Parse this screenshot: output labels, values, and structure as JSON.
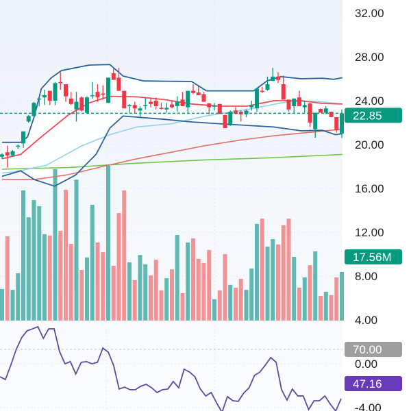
{
  "chart_data": {
    "type": "candlestick",
    "title": "",
    "price_axis": {
      "ticks": [
        32,
        28,
        24,
        20,
        16,
        12,
        8,
        4,
        0,
        -4
      ],
      "tick_labels": [
        "32.00",
        "28.00",
        "24.00",
        "20.00",
        "16.00",
        "12.00",
        "8.00",
        "4.00",
        "0.00",
        "-4.00"
      ],
      "range": [
        -4.4,
        33.2
      ],
      "position": "right"
    },
    "candles_ohlc": [
      [
        18.9,
        19.2,
        18.7,
        19.1
      ],
      [
        19.3,
        19.9,
        17.9,
        19.0
      ],
      [
        19.0,
        19.5,
        18.9,
        19.4
      ],
      [
        19.8,
        20.0,
        19.6,
        19.9
      ],
      [
        20.1,
        21.2,
        19.7,
        21.2
      ],
      [
        22.1,
        22.7,
        22.0,
        22.6
      ],
      [
        22.6,
        23.9,
        22.5,
        23.8
      ],
      [
        24.15,
        24.4,
        23.5,
        24.2
      ],
      [
        24.3,
        25.0,
        23.6,
        24.5
      ],
      [
        24.9,
        24.9,
        23.6,
        24.0
      ],
      [
        24.0,
        25.7,
        23.6,
        25.6
      ],
      [
        25.7,
        26.6,
        25.0,
        25.6
      ],
      [
        25.5,
        25.5,
        23.9,
        24.4
      ],
      [
        24.2,
        24.8,
        23.6,
        23.7
      ],
      [
        23.2,
        24.8,
        22.1,
        23.9
      ],
      [
        24.3,
        24.4,
        23.0,
        23.1
      ],
      [
        22.9,
        24.4,
        22.8,
        24.3
      ],
      [
        24.45,
        25.7,
        24.2,
        24.5
      ],
      [
        24.8,
        25.5,
        23.9,
        24.3
      ],
      [
        24.65,
        25.4,
        24.1,
        24.55
      ],
      [
        23.8,
        26.1,
        23.8,
        26.1
      ],
      [
        26.5,
        27.0,
        25.9,
        25.9
      ],
      [
        26.1,
        27.0,
        24.9,
        24.9
      ],
      [
        24.9,
        24.9,
        23.3,
        23.3
      ],
      [
        23.5,
        23.7,
        22.9,
        23.6
      ],
      [
        23.6,
        23.9,
        22.9,
        23.3
      ],
      [
        23.1,
        23.5,
        22.4,
        23.3
      ],
      [
        23.5,
        24.25,
        23.2,
        23.6
      ],
      [
        23.9,
        24.3,
        23.4,
        23.7
      ],
      [
        24.0,
        24.3,
        23.2,
        23.5
      ],
      [
        23.35,
        23.8,
        23.2,
        23.25
      ],
      [
        23.2,
        23.8,
        22.9,
        23.35
      ],
      [
        23.65,
        24.0,
        23.3,
        23.4
      ],
      [
        23.5,
        24.4,
        23.0,
        23.9
      ],
      [
        24.1,
        24.8,
        23.5,
        23.5
      ],
      [
        23.4,
        24.9,
        22.9,
        24.9
      ],
      [
        24.9,
        25.5,
        24.6,
        24.7
      ],
      [
        24.75,
        25.3,
        24.5,
        24.5
      ],
      [
        24.6,
        24.8,
        23.9,
        23.9
      ],
      [
        23.75,
        23.8,
        22.75,
        23.4
      ],
      [
        23.45,
        23.8,
        23.1,
        23.55
      ],
      [
        23.7,
        23.7,
        22.8,
        22.8
      ],
      [
        22.7,
        22.7,
        21.5,
        21.5
      ],
      [
        21.75,
        23.1,
        21.7,
        23.0
      ],
      [
        23.1,
        23.4,
        22.75,
        22.8
      ],
      [
        23.0,
        23.1,
        22.1,
        22.75
      ],
      [
        22.75,
        23.2,
        22.5,
        23.1
      ],
      [
        23.4,
        24.0,
        23.1,
        23.6
      ],
      [
        23.3,
        25.1,
        23.0,
        25.1
      ],
      [
        24.9,
        25.25,
        24.7,
        24.85
      ],
      [
        25.0,
        26.2,
        24.9,
        25.5
      ],
      [
        25.8,
        27.0,
        25.8,
        26.2
      ],
      [
        26.2,
        26.6,
        25.6,
        25.9
      ],
      [
        25.5,
        26.3,
        24.1,
        24.1
      ],
      [
        24.1,
        24.1,
        23.0,
        23.2
      ],
      [
        23.5,
        24.2,
        22.9,
        24.2
      ],
      [
        24.3,
        24.9,
        23.5,
        23.5
      ],
      [
        23.4,
        24.0,
        22.9,
        23.6
      ],
      [
        23.75,
        23.8,
        21.6,
        22.0
      ],
      [
        21.4,
        22.9,
        20.6,
        22.9
      ],
      [
        23.25,
        23.3,
        22.9,
        22.9
      ],
      [
        22.9,
        23.5,
        22.8,
        23.3
      ],
      [
        23.0,
        23.0,
        22.5,
        22.5
      ],
      [
        22.5,
        22.5,
        21.1,
        21.3
      ],
      [
        21.0,
        23.2,
        20.6,
        22.85
      ]
    ],
    "volume_millions": [
      11.4,
      30.4,
      11.1,
      17.1,
      47.0,
      37.3,
      43.5,
      41.3,
      31.2,
      30.7,
      54.7,
      32.4,
      47.2,
      27.7,
      50.9,
      18.3,
      22.8,
      41.8,
      28.2,
      24.7,
      55.9,
      19.8,
      38.8,
      47.0,
      21.0,
      14.6,
      23.7,
      20.3,
      16.3,
      22.0,
      10.9,
      15.3,
      18.5,
      30.9,
      9.9,
      28.2,
      29.7,
      22.3,
      20.8,
      25.5,
      7.7,
      10.9,
      24.0,
      12.9,
      11.9,
      15.1,
      11.1,
      18.8,
      34.9,
      36.8,
      26.7,
      29.4,
      27.5,
      34.4,
      36.8,
      23.0,
      11.9,
      15.6,
      20.0,
      25.0,
      8.9,
      10.4,
      9.2,
      15.6,
      17.56
    ],
    "volume_up": [
      1,
      0,
      1,
      1,
      1,
      1,
      1,
      1,
      1,
      0,
      1,
      0,
      0,
      0,
      1,
      0,
      1,
      1,
      0,
      0,
      1,
      0,
      0,
      0,
      1,
      0,
      1,
      1,
      0,
      0,
      0,
      1,
      0,
      1,
      0,
      1,
      0,
      0,
      0,
      0,
      1,
      0,
      0,
      1,
      0,
      0,
      1,
      1,
      1,
      0,
      1,
      1,
      0,
      0,
      0,
      1,
      0,
      1,
      0,
      1,
      0,
      1,
      0,
      0,
      1
    ],
    "overlays": {
      "bollinger_upper": [
        [
          0,
          20.2
        ],
        [
          3.5,
          20.2
        ],
        [
          4.8,
          20.7
        ],
        [
          6.1,
          22.6
        ],
        [
          7.4,
          25.1
        ],
        [
          9.3,
          26.1
        ],
        [
          11.2,
          26.75
        ],
        [
          16.4,
          27.25
        ],
        [
          20.3,
          27.3
        ],
        [
          22.8,
          26.25
        ],
        [
          26.7,
          25.8
        ],
        [
          35.7,
          25.75
        ],
        [
          38.5,
          24.9
        ],
        [
          47.4,
          24.9
        ],
        [
          49.9,
          25.8
        ],
        [
          52.5,
          26.2
        ],
        [
          56.4,
          26.0
        ],
        [
          60.3,
          26.05
        ],
        [
          62.5,
          25.95
        ],
        [
          64.1,
          26.1
        ]
      ],
      "bollinger_middle": [
        [
          0,
          18.7
        ],
        [
          3.5,
          19.1
        ],
        [
          7.4,
          20.7
        ],
        [
          12.5,
          22.7
        ],
        [
          16.4,
          23.8
        ],
        [
          20.3,
          24.4
        ],
        [
          25.4,
          24.35
        ],
        [
          30.6,
          24.1
        ],
        [
          35.7,
          23.7
        ],
        [
          40.9,
          23.5
        ],
        [
          46.1,
          23.5
        ],
        [
          51.2,
          24.0
        ],
        [
          56.4,
          24.0
        ],
        [
          60.3,
          23.75
        ],
        [
          64.1,
          23.7
        ]
      ],
      "bollinger_lower": [
        [
          0,
          17.1
        ],
        [
          3.5,
          17.6
        ],
        [
          6.1,
          16.8
        ],
        [
          9.9,
          16.2
        ],
        [
          13.8,
          17.2
        ],
        [
          17.7,
          19.1
        ],
        [
          20.3,
          21.5
        ],
        [
          22.8,
          22.6
        ],
        [
          25.4,
          22.5
        ],
        [
          30.6,
          22.3
        ],
        [
          35.7,
          22.06
        ],
        [
          40.9,
          21.9
        ],
        [
          46.1,
          21.75
        ],
        [
          51.2,
          21.6
        ],
        [
          56.4,
          21.25
        ],
        [
          60.3,
          21.3
        ],
        [
          62.8,
          20.9
        ],
        [
          64.1,
          21.0
        ]
      ],
      "ma_light_blue": [
        [
          0,
          17.4
        ],
        [
          2.2,
          17.5
        ],
        [
          8.3,
          18.1
        ],
        [
          15.1,
          19.9
        ],
        [
          20.3,
          20.9
        ],
        [
          25.4,
          21.6
        ],
        [
          31.9,
          21.9
        ],
        [
          38.3,
          22.6
        ],
        [
          46.1,
          23.2
        ],
        [
          53.8,
          23.9
        ],
        [
          59,
          23.95
        ],
        [
          64.1,
          23.7
        ]
      ],
      "ma_red": [
        [
          0,
          16.8
        ],
        [
          6.1,
          16.8
        ],
        [
          12.5,
          17.25
        ],
        [
          19,
          18.0
        ],
        [
          25.4,
          18.7
        ],
        [
          31.9,
          19.3
        ],
        [
          38.3,
          19.9
        ],
        [
          44.8,
          20.4
        ],
        [
          51.2,
          20.8
        ],
        [
          57.7,
          21.1
        ],
        [
          64.1,
          21.4
        ]
      ],
      "ma_green": [
        [
          0,
          17.75
        ],
        [
          12.5,
          17.9
        ],
        [
          25.4,
          18.3
        ],
        [
          38.3,
          18.6
        ],
        [
          51.2,
          18.8
        ],
        [
          64.1,
          19.1
        ]
      ]
    },
    "rsi": {
      "values": [
        57.3,
        56.0,
        62.7,
        70,
        75.4,
        78.6,
        79.5,
        80.5,
        75.1,
        79.5,
        79.5,
        69,
        63.3,
        64.3,
        58.6,
        64,
        64.3,
        63.3,
        64,
        70.6,
        68.7,
        62.4,
        51.6,
        52.5,
        51.3,
        51.3,
        52.9,
        53.8,
        52.2,
        50,
        51.3,
        51.6,
        55.1,
        52.2,
        60.8,
        59.5,
        57.3,
        51.6,
        48.4,
        50,
        45.2,
        40.8,
        48.1,
        46.2,
        45.9,
        49.7,
        52.2,
        57.9,
        59.5,
        62.7,
        66.2,
        64,
        51.3,
        46.5,
        51.6,
        48.4,
        48.4,
        42.1,
        46.2,
        46.2,
        48.4,
        44.6,
        41.4,
        47.16
      ],
      "overbought": 70
    },
    "labels": {
      "last_price": "22.85",
      "last_volume": "17.56M",
      "rsi_level": "70.00",
      "rsi_value": "47.16"
    },
    "colors": {
      "up": "#089981",
      "down": "#f23645",
      "volume_up": "#5fb8b1",
      "volume_down": "#f09397",
      "bb": "#2962a0",
      "bb_mid": "#ef4b55",
      "ma_light_blue": "#94cff0",
      "ma_red": "#e0706e",
      "ma_green": "#6cc84a",
      "rsi": "#5a4aa0",
      "rsi_tag": "#673ab7",
      "level_tag": "#9e9e9e"
    }
  }
}
